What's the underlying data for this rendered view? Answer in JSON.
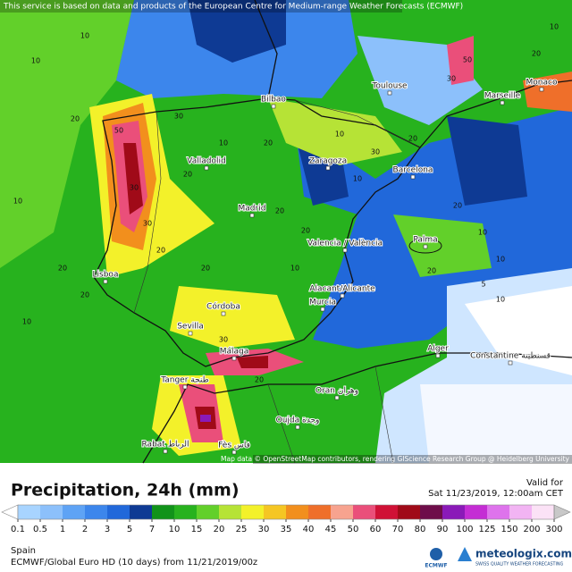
{
  "header": {
    "notice": "This service is based on data and products of the European Centre for Medium-range Weather Forecasts (ECMWF)"
  },
  "map": {
    "cities": [
      "Toulouse",
      "Marseille",
      "Monaco",
      "Bilbao",
      "Valladolid",
      "Zaragoza",
      "Barcelona",
      "Madrid",
      "Valencia / València",
      "Palma",
      "Lisboa",
      "Alacant/Alicante",
      "Murcia",
      "Córdoba",
      "Sevilla",
      "Málaga",
      "Tanger طنجة",
      "Oran وهران",
      "Alger",
      "Constantine قسنطينة",
      "Oujda وجدة",
      "Rabat الرباط",
      "Fès فاس"
    ],
    "contour_labels": [
      10,
      10,
      20,
      10,
      30,
      50,
      20,
      10,
      30,
      20,
      20,
      10,
      20,
      30,
      20,
      10,
      20,
      30,
      20,
      20,
      10,
      30,
      10,
      20,
      20,
      10,
      10,
      20,
      50,
      30,
      20,
      10,
      5,
      10,
      20
    ],
    "attribution": "Map data © OpenStreetMap contributors, rendering GIScience Research Group @ Heidelberg University"
  },
  "footer": {
    "title": "Precipitation, 24h (mm)",
    "valid_label": "Valid for",
    "valid_time": "Sat 11/23/2019, 12:00am CET",
    "region": "Spain",
    "model": "ECMWF/Global Euro HD (10 days) from 11/21/2019/00z",
    "ecmwf": "ECMWF",
    "brand": "meteologix.com",
    "tagline": "SWISS QUALITY WEATHER FORECASTING"
  },
  "legend": {
    "ticks": [
      0.1,
      0.5,
      1,
      2,
      3,
      5,
      7,
      10,
      15,
      20,
      25,
      30,
      35,
      40,
      45,
      50,
      60,
      70,
      80,
      90,
      100,
      125,
      150,
      200,
      300
    ],
    "colors": [
      "#a8d4ff",
      "#8cc0fb",
      "#5ea3f5",
      "#3c86ec",
      "#2168da",
      "#0e3a94",
      "#11931a",
      "#27b21e",
      "#62d02a",
      "#b6e336",
      "#f3f12a",
      "#f5c623",
      "#f28f1d",
      "#ef6f2a",
      "#f7a38f",
      "#ea4f7a",
      "#d01136",
      "#a00a18",
      "#6e0d4a",
      "#8a1ab8",
      "#c42dd4",
      "#de73ec",
      "#f2b4f3",
      "#fbe2f6"
    ],
    "under_color": "#ffffff",
    "over_color": "#c8c8c8"
  }
}
